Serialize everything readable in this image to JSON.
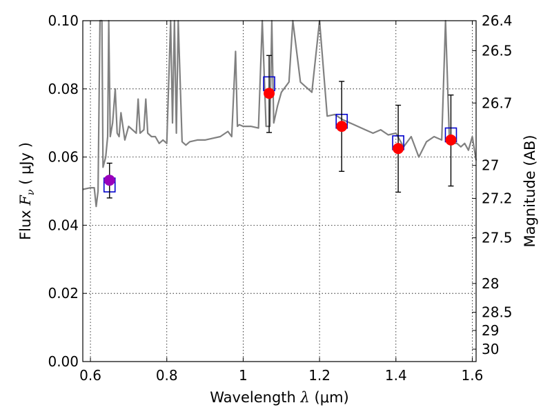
{
  "chart_data": {
    "type": "scatter",
    "xlabel_prefix": "Wavelength",
    "xlabel_symbol": "λ",
    "xlabel_unit": "(μm)",
    "ylabel_prefix": "Flux",
    "ylabel_symbol": "F",
    "ylabel_sub": "ν",
    "ylabel_unit": "( μJy )",
    "y2label": "Magnitude (AB)",
    "xlim": [
      0.58,
      1.61
    ],
    "ylim": [
      0.0,
      0.1
    ],
    "grid": true,
    "x_ticks": [
      0.6,
      0.8,
      1.0,
      1.2,
      1.4,
      1.6
    ],
    "x_tick_labels": [
      "0.6",
      "0.8",
      "1",
      "1.2",
      "1.4",
      "1.6"
    ],
    "y_ticks": [
      0.0,
      0.02,
      0.04,
      0.06,
      0.08,
      0.1
    ],
    "y_tick_labels": [
      "0.00",
      "0.02",
      "0.04",
      "0.06",
      "0.08",
      "0.10"
    ],
    "mag_ticks": [
      26.4,
      26.5,
      26.7,
      27,
      27.2,
      27.5,
      28,
      28.5,
      29,
      30
    ],
    "mag_tick_labels": [
      "26.4",
      "26.5",
      "26.7",
      "27",
      "27.2",
      "27.5",
      "28",
      "28.5",
      "29",
      "30"
    ],
    "series": [
      {
        "type": "line",
        "color": "#808080",
        "x": [
          0.58,
          0.6,
          0.61,
          0.615,
          0.62,
          0.625,
          0.63,
          0.633,
          0.64,
          0.645,
          0.648,
          0.652,
          0.655,
          0.658,
          0.665,
          0.67,
          0.675,
          0.68,
          0.69,
          0.7,
          0.71,
          0.72,
          0.725,
          0.73,
          0.74,
          0.745,
          0.75,
          0.76,
          0.77,
          0.78,
          0.79,
          0.8,
          0.81,
          0.815,
          0.82,
          0.825,
          0.83,
          0.84,
          0.85,
          0.86,
          0.88,
          0.9,
          0.92,
          0.94,
          0.96,
          0.97,
          0.98,
          0.985,
          0.99,
          1.0,
          1.02,
          1.04,
          1.05,
          1.06,
          1.07,
          1.075,
          1.08,
          1.09,
          1.1,
          1.12,
          1.13,
          1.15,
          1.18,
          1.2,
          1.22,
          1.24,
          1.26,
          1.28,
          1.3,
          1.32,
          1.34,
          1.36,
          1.38,
          1.4,
          1.42,
          1.44,
          1.46,
          1.48,
          1.5,
          1.52,
          1.53,
          1.54,
          1.55,
          1.56,
          1.57,
          1.58,
          1.59,
          1.6,
          1.61
        ],
        "y": [
          0.0505,
          0.051,
          0.051,
          0.0455,
          0.05,
          0.1,
          0.1,
          0.057,
          0.06,
          0.066,
          0.1,
          0.066,
          0.068,
          0.07,
          0.08,
          0.067,
          0.066,
          0.073,
          0.065,
          0.069,
          0.068,
          0.067,
          0.077,
          0.067,
          0.068,
          0.077,
          0.067,
          0.066,
          0.066,
          0.064,
          0.065,
          0.064,
          0.1,
          0.07,
          0.1,
          0.067,
          0.1,
          0.0645,
          0.0635,
          0.0645,
          0.065,
          0.065,
          0.0655,
          0.066,
          0.0675,
          0.066,
          0.091,
          0.069,
          0.0695,
          0.069,
          0.069,
          0.0685,
          0.1,
          0.069,
          0.069,
          0.1,
          0.07,
          0.075,
          0.079,
          0.082,
          0.1,
          0.082,
          0.079,
          0.1,
          0.072,
          0.0725,
          0.071,
          0.07,
          0.069,
          0.068,
          0.067,
          0.068,
          0.0665,
          0.067,
          0.063,
          0.066,
          0.06,
          0.0645,
          0.066,
          0.065,
          0.1,
          0.065,
          0.064,
          0.064,
          0.063,
          0.064,
          0.062,
          0.066,
          0.059
        ]
      }
    ],
    "model_points": {
      "color": "#0000cc",
      "marker": "open-square",
      "x": [
        0.65,
        1.068,
        1.258,
        1.406,
        1.544
      ],
      "y": [
        0.0518,
        0.0815,
        0.0705,
        0.0642,
        0.0665
      ]
    },
    "observed_points": {
      "marker": "circle",
      "x": [
        0.65,
        1.068,
        1.258,
        1.406,
        1.544
      ],
      "y": [
        0.0532,
        0.0787,
        0.069,
        0.0625,
        0.065
      ],
      "yerr_low": [
        0.048,
        0.0672,
        0.0558,
        0.0497,
        0.0515
      ],
      "yerr_high": [
        0.0582,
        0.0898,
        0.0822,
        0.0752,
        0.0782
      ],
      "colors": [
        "#9900bb",
        "#ff0000",
        "#ff0000",
        "#ff0000",
        "#ff0000"
      ]
    }
  }
}
